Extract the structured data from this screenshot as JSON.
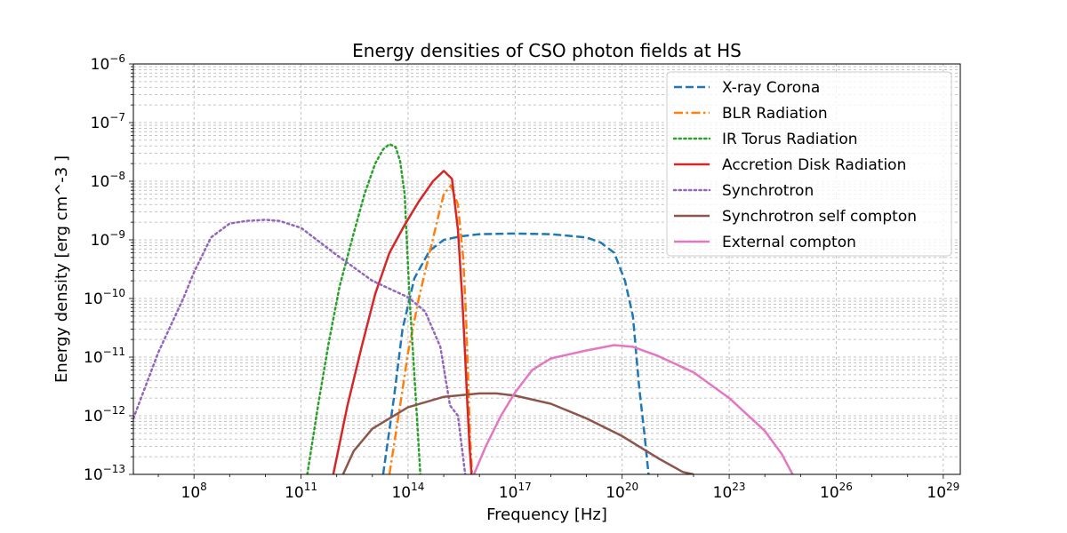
{
  "chart_data": {
    "type": "line",
    "title": "Energy densities of CSO photon fields at HS",
    "xlabel": "Frequency [Hz]",
    "ylabel": "Energy density [erg cm^-3 ]",
    "xscale": "log",
    "yscale": "log",
    "xlim": [
      2000000.0,
      3e+29
    ],
    "ylim": [
      1e-13,
      1e-06
    ],
    "grid": "both (major and minor), dashed gray",
    "legend_position": "upper-right",
    "x_ticks": [
      {
        "base": "10",
        "exp": "8",
        "value": 100000000.0
      },
      {
        "base": "10",
        "exp": "11",
        "value": 100000000000.0
      },
      {
        "base": "10",
        "exp": "14",
        "value": 100000000000000.0
      },
      {
        "base": "10",
        "exp": "17",
        "value": 1e+17
      },
      {
        "base": "10",
        "exp": "20",
        "value": 1e+20
      },
      {
        "base": "10",
        "exp": "23",
        "value": 1e+23
      },
      {
        "base": "10",
        "exp": "26",
        "value": 1e+26
      },
      {
        "base": "10",
        "exp": "29",
        "value": 1e+29
      }
    ],
    "y_ticks": [
      {
        "base": "10",
        "exp": "−13",
        "value": 1e-13
      },
      {
        "base": "10",
        "exp": "−12",
        "value": 1e-12
      },
      {
        "base": "10",
        "exp": "−11",
        "value": 1e-11
      },
      {
        "base": "10",
        "exp": "−10",
        "value": 1e-10
      },
      {
        "base": "10",
        "exp": "−9",
        "value": 1e-09
      },
      {
        "base": "10",
        "exp": "−8",
        "value": 1e-08
      },
      {
        "base": "10",
        "exp": "−7",
        "value": 1e-07
      },
      {
        "base": "10",
        "exp": "−6",
        "value": 1e-06
      }
    ],
    "series": [
      {
        "name": "X-ray Corona",
        "color": "#1f77b4",
        "dash": "dashed",
        "x": [
          20000000000000.0,
          40000000000000.0,
          70000000000000.0,
          150000000000000.0,
          400000000000000.0,
          1000000000000000.0,
          3000000000000000.0,
          1e+16,
          1e+17,
          1e+18,
          1e+19,
          2.5e+19,
          6e+19,
          1.2e+20,
          2e+20,
          3e+20,
          4.2e+20,
          5.5e+20
        ],
        "y": [
          1e-13,
          2e-12,
          3e-11,
          2.2e-10,
          6.5e-10,
          1e-09,
          1.15e-09,
          1.25e-09,
          1.28e-09,
          1.25e-09,
          1.1e-09,
          9e-10,
          6e-10,
          2e-10,
          5e-11,
          3e-12,
          5e-13,
          1e-13
        ]
      },
      {
        "name": "BLR Radiation",
        "color": "#ff7f0e",
        "dash": "dashdot",
        "x": [
          30000000000000.0,
          60000000000000.0,
          100000000000000.0,
          200000000000000.0,
          400000000000000.0,
          700000000000000.0,
          1000000000000000.0,
          1600000000000000.0,
          2500000000000000.0,
          3500000000000000.0,
          4200000000000000.0,
          4800000000000000.0,
          5400000000000000.0,
          6200000000000000.0
        ],
        "y": [
          1e-13,
          1.5e-12,
          1.2e-11,
          1e-10,
          6e-10,
          2.5e-09,
          6e-09,
          8.5e-09,
          4e-09,
          5e-10,
          5e-11,
          5e-12,
          5e-13,
          1e-13
        ]
      },
      {
        "name": "IR Torus Radiation",
        "color": "#2ca02c",
        "dash": "dotted",
        "x": [
          150000000000.0,
          300000000000.0,
          600000000000.0,
          1200000000000.0,
          3000000000000.0,
          6000000000000.0,
          12000000000000.0,
          20000000000000.0,
          30000000000000.0,
          45000000000000.0,
          60000000000000.0,
          80000000000000.0,
          110000000000000.0,
          140000000000000.0,
          180000000000000.0,
          220000000000000.0
        ],
        "y": [
          1e-13,
          1.5e-12,
          1.8e-11,
          1.6e-10,
          1.3e-09,
          6e-09,
          2e-08,
          3.5e-08,
          4.3e-08,
          3.8e-08,
          2.2e-08,
          6e-09,
          1e-10,
          1e-11,
          8e-13,
          1e-13
        ]
      },
      {
        "name": " Accretion Disk Radiation",
        "color": "#d62728",
        "dash": "solid",
        "x": [
          800000000000.0,
          2000000000000.0,
          5000000000000.0,
          12000000000000.0,
          30000000000000.0,
          80000000000000.0,
          200000000000000.0,
          500000000000000.0,
          1000000000000000.0,
          1700000000000000.0,
          2500000000000000.0,
          3300000000000000.0,
          4000000000000000.0,
          4600000000000000.0,
          5300000000000000.0,
          6000000000000000.0
        ],
        "y": [
          1e-13,
          1.5e-12,
          1.5e-11,
          1.2e-10,
          6e-10,
          1.8e-09,
          4.5e-09,
          1e-08,
          1.5e-08,
          1.1e-08,
          1.5e-09,
          1e-10,
          1e-11,
          1.5e-12,
          3e-13,
          1e-13
        ]
      },
      {
        "name": "Synchrotron",
        "color": "#9467bd",
        "dash": "dotted",
        "x": [
          2000000.0,
          10000000.0,
          50000000.0,
          100000000.0,
          300000000.0,
          1000000000.0,
          3000000000.0,
          10000000000.0,
          25000000000.0,
          100000000000.0,
          1000000000000.0,
          10000000000000.0,
          100000000000000.0,
          300000000000000.0,
          800000000000000.0,
          1500000000000000.0,
          2500000000000000.0,
          3200000000000000.0,
          4000000000000000.0
        ],
        "y": [
          9e-13,
          1.2e-11,
          1e-10,
          2.8e-10,
          1.1e-09,
          1.9e-09,
          2.1e-09,
          2.2e-09,
          2.1e-09,
          1.6e-09,
          5.5e-10,
          2e-10,
          1.05e-10,
          6e-11,
          1.5e-11,
          1.5e-12,
          1e-12,
          3e-13,
          1e-13
        ]
      },
      {
        "name": "Synchrotron self compton",
        "color": "#8c564b",
        "dash": "solid",
        "x": [
          1500000000000.0,
          3000000000000.0,
          10000000000000.0,
          100000000000000.0,
          1000000000000000.0,
          1e+16,
          3e+16,
          1e+17,
          1e+18,
          1e+19,
          1e+20,
          1e+21,
          5e+21,
          1e+22
        ],
        "y": [
          1e-13,
          2.5e-13,
          6e-13,
          1.4e-12,
          2.1e-12,
          2.4e-12,
          2.4e-12,
          2.2e-12,
          1.6e-12,
          9e-13,
          4.5e-13,
          1.9e-13,
          1.1e-13,
          1e-13
        ]
      },
      {
        "name": "External compton",
        "color": "#e377c2",
        "dash": "solid",
        "x": [
          7000000000000000.0,
          1.5e+16,
          4e+16,
          1e+17,
          3e+17,
          1e+18,
          1e+19,
          6e+19,
          2e+20,
          1e+21,
          1e+22,
          1e+23,
          1e+24,
          3e+24,
          6e+24
        ],
        "y": [
          1e-13,
          3e-13,
          1e-12,
          2.5e-12,
          6e-12,
          9.5e-12,
          1.3e-11,
          1.6e-11,
          1.5e-11,
          1.05e-11,
          5.5e-12,
          2e-12,
          5.5e-13,
          2.2e-13,
          1e-13
        ]
      }
    ]
  }
}
